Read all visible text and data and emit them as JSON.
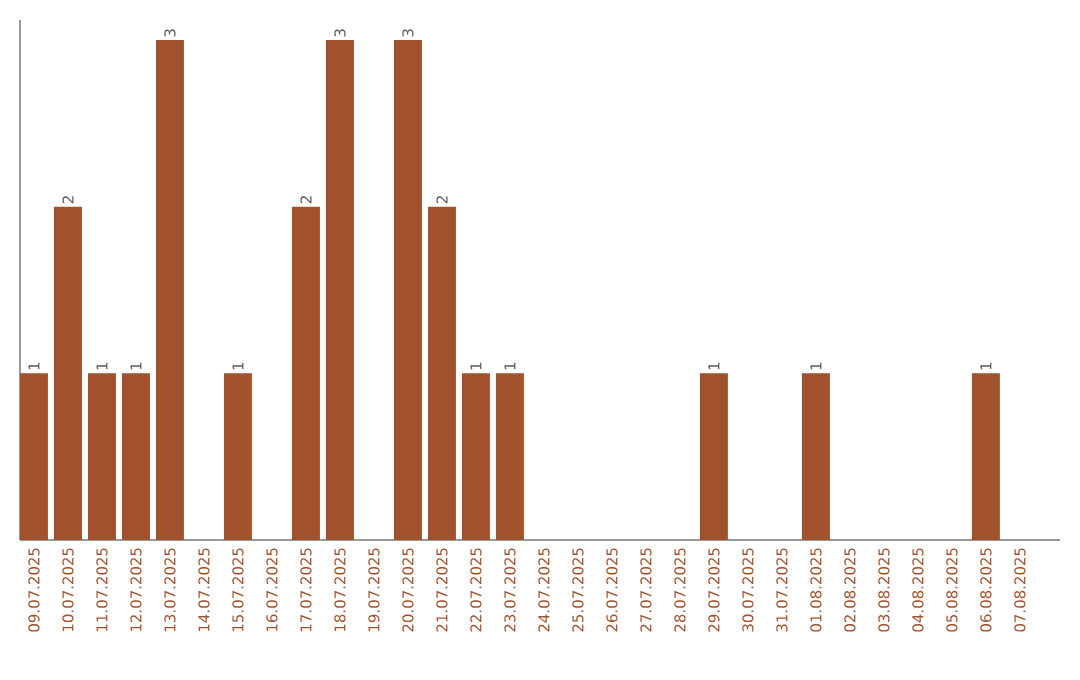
{
  "chart_data": {
    "type": "bar",
    "categories": [
      "09.07.2025",
      "10.07.2025",
      "11.07.2025",
      "12.07.2025",
      "13.07.2025",
      "14.07.2025",
      "15.07.2025",
      "16.07.2025",
      "17.07.2025",
      "18.07.2025",
      "19.07.2025",
      "20.07.2025",
      "21.07.2025",
      "22.07.2025",
      "23.07.2025",
      "24.07.2025",
      "25.07.2025",
      "26.07.2025",
      "27.07.2025",
      "28.07.2025",
      "29.07.2025",
      "30.07.2025",
      "31.07.2025",
      "01.08.2025",
      "02.08.2025",
      "03.08.2025",
      "04.08.2025",
      "05.08.2025",
      "06.08.2025",
      "07.08.2025"
    ],
    "values": [
      1,
      2,
      1,
      1,
      3,
      0,
      1,
      0,
      2,
      3,
      0,
      3,
      2,
      1,
      1,
      0,
      0,
      0,
      0,
      0,
      1,
      0,
      0,
      1,
      0,
      0,
      0,
      0,
      1,
      0
    ],
    "value_labels": [
      "1",
      "2",
      "1",
      "1",
      "3",
      null,
      "1",
      null,
      "2",
      "3",
      null,
      "3",
      "2",
      "1",
      "1",
      null,
      null,
      null,
      null,
      null,
      "1",
      null,
      null,
      "1",
      null,
      null,
      null,
      null,
      "1",
      null
    ],
    "color": "#a0522d",
    "ylim": [
      0,
      3.12
    ],
    "tick_labels": "x"
  }
}
